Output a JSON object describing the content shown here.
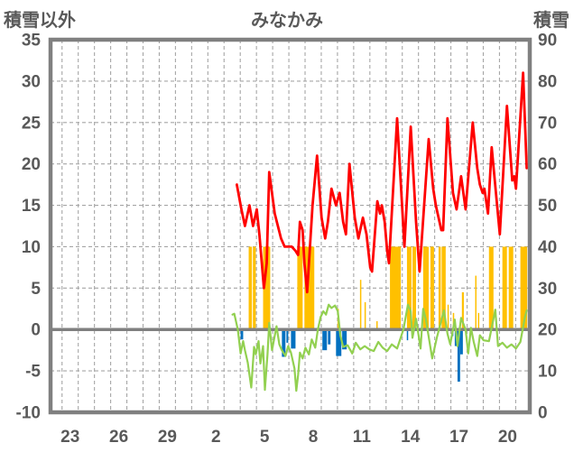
{
  "chart_data": {
    "type": "line+bar",
    "title": "みなかみ",
    "left_axis": {
      "label": "積雪以外",
      "min": -10,
      "max": 35,
      "ticks": [
        "35",
        "30",
        "25",
        "20",
        "15",
        "10",
        "5",
        "0",
        "-5",
        "-10"
      ],
      "tick_values": [
        35,
        30,
        25,
        20,
        15,
        10,
        5,
        0,
        -5,
        -10
      ],
      "grid_values": [
        30,
        25,
        20,
        15,
        10,
        5,
        -5
      ]
    },
    "right_axis": {
      "label": "積雪",
      "min": 0,
      "max": 90,
      "ticks": [
        "90",
        "80",
        "70",
        "60",
        "50",
        "40",
        "30",
        "20",
        "10",
        "0"
      ],
      "tick_values": [
        90,
        80,
        70,
        60,
        50,
        40,
        30,
        20,
        10,
        0
      ]
    },
    "x_axis": {
      "t_min": -1.21,
      "t_max": 28.37,
      "gridline_start": -0.5,
      "gridline_step": 1,
      "gridline_end": 27.5,
      "ticks": [
        {
          "t": 0,
          "label": "23"
        },
        {
          "t": 3,
          "label": "26"
        },
        {
          "t": 6,
          "label": "29"
        },
        {
          "t": 9,
          "label": "2"
        },
        {
          "t": 12,
          "label": "5"
        },
        {
          "t": 15,
          "label": "8"
        },
        {
          "t": 18,
          "label": "11"
        },
        {
          "t": 21,
          "label": "14"
        },
        {
          "t": 24,
          "label": "17"
        },
        {
          "t": 27,
          "label": "20"
        }
      ]
    },
    "colors": {
      "red_line": "#FF0000",
      "green_line": "#92D050",
      "orange_bars": "#FFC000",
      "blue_bars": "#0070C0",
      "frame": "#808080",
      "gridline": "#A6A6A6",
      "zero_line": "#808080",
      "text": "#595959"
    },
    "series": [
      {
        "name": "snow-depth-line",
        "type": "line",
        "axis": "right",
        "color": "#FF0000",
        "points": [
          [
            10.29,
            55
          ],
          [
            10.57,
            49
          ],
          [
            10.79,
            45
          ],
          [
            11.07,
            50
          ],
          [
            11.29,
            45
          ],
          [
            11.52,
            49
          ],
          [
            11.68,
            43
          ],
          [
            11.96,
            30
          ],
          [
            12.13,
            36
          ],
          [
            12.29,
            58
          ],
          [
            12.63,
            48
          ],
          [
            13.02,
            42
          ],
          [
            13.24,
            40
          ],
          [
            13.46,
            40
          ],
          [
            13.68,
            40
          ],
          [
            13.91,
            39
          ],
          [
            14.07,
            38
          ],
          [
            14.18,
            46
          ],
          [
            14.35,
            44
          ],
          [
            14.46,
            36
          ],
          [
            14.63,
            29
          ],
          [
            14.96,
            50
          ],
          [
            15.24,
            62
          ],
          [
            15.52,
            47
          ],
          [
            15.74,
            42
          ],
          [
            15.91,
            46
          ],
          [
            16.13,
            54
          ],
          [
            16.41,
            50
          ],
          [
            16.63,
            53
          ],
          [
            16.85,
            46
          ],
          [
            17.02,
            43
          ],
          [
            17.24,
            60
          ],
          [
            17.57,
            47
          ],
          [
            17.79,
            42
          ],
          [
            18.07,
            47
          ],
          [
            18.29,
            43
          ],
          [
            18.52,
            35
          ],
          [
            18.63,
            34
          ],
          [
            18.96,
            51
          ],
          [
            19.13,
            48
          ],
          [
            19.24,
            50
          ],
          [
            19.41,
            46
          ],
          [
            19.57,
            39
          ],
          [
            19.68,
            36
          ],
          [
            20.18,
            71
          ],
          [
            20.63,
            40
          ],
          [
            21.02,
            69
          ],
          [
            21.35,
            46
          ],
          [
            21.57,
            34
          ],
          [
            22.13,
            66
          ],
          [
            22.41,
            54
          ],
          [
            22.57,
            50
          ],
          [
            22.91,
            44
          ],
          [
            23.02,
            44
          ],
          [
            23.29,
            71
          ],
          [
            23.63,
            53
          ],
          [
            23.85,
            49
          ],
          [
            24.13,
            57
          ],
          [
            24.41,
            49
          ],
          [
            24.85,
            70
          ],
          [
            25.13,
            59
          ],
          [
            25.29,
            55
          ],
          [
            25.46,
            53
          ],
          [
            25.57,
            54
          ],
          [
            25.79,
            48
          ],
          [
            26.02,
            64
          ],
          [
            26.52,
            43
          ],
          [
            26.96,
            74
          ],
          [
            27.29,
            56
          ],
          [
            27.41,
            57
          ],
          [
            27.52,
            54
          ],
          [
            27.96,
            82
          ],
          [
            28.18,
            59
          ]
        ]
      },
      {
        "name": "temperature-line",
        "type": "line",
        "axis": "left",
        "color": "#92D050",
        "points": [
          [
            10.02,
            1.8
          ],
          [
            10.13,
            1.9
          ],
          [
            10.35,
            0
          ],
          [
            10.52,
            -2.9
          ],
          [
            10.68,
            -1.4
          ],
          [
            10.79,
            -2.5
          ],
          [
            10.96,
            -4
          ],
          [
            11.18,
            -7
          ],
          [
            11.35,
            -2.1
          ],
          [
            11.46,
            -3
          ],
          [
            11.63,
            -1.4
          ],
          [
            11.74,
            -4.1
          ],
          [
            11.91,
            -2
          ],
          [
            12.02,
            -7.3
          ],
          [
            12.18,
            -3
          ],
          [
            12.29,
            0.8
          ],
          [
            12.46,
            -2.5
          ],
          [
            12.74,
            0.4
          ],
          [
            12.91,
            -1.8
          ],
          [
            13.07,
            -2.5
          ],
          [
            13.29,
            -3.2
          ],
          [
            13.46,
            -2
          ],
          [
            13.63,
            -2.8
          ],
          [
            13.85,
            -4.7
          ],
          [
            13.96,
            -7.4
          ],
          [
            14.07,
            -5.5
          ],
          [
            14.18,
            -2.8
          ],
          [
            14.35,
            -3.5
          ],
          [
            14.52,
            -2.2
          ],
          [
            14.74,
            -3
          ],
          [
            14.91,
            -1.2
          ],
          [
            15.13,
            -2.2
          ],
          [
            15.29,
            0
          ],
          [
            15.46,
            1.5
          ],
          [
            15.63,
            2.2
          ],
          [
            15.79,
            1.8
          ],
          [
            15.96,
            3
          ],
          [
            16.13,
            2.6
          ],
          [
            16.35,
            2.9
          ],
          [
            16.52,
            2.2
          ],
          [
            16.68,
            -0.7
          ],
          [
            16.85,
            -2.1
          ],
          [
            17.13,
            -1.9
          ],
          [
            17.41,
            -2.9
          ],
          [
            17.63,
            -1.6
          ],
          [
            17.91,
            -2.4
          ],
          [
            18.18,
            -2
          ],
          [
            18.46,
            -2.4
          ],
          [
            18.74,
            -2.6
          ],
          [
            19.02,
            -1.5
          ],
          [
            19.29,
            -2.2
          ],
          [
            19.57,
            -2.6
          ],
          [
            19.85,
            -1.8
          ],
          [
            20.18,
            -2.3
          ],
          [
            20.57,
            0
          ],
          [
            20.85,
            3
          ],
          [
            21.02,
            2.2
          ],
          [
            21.13,
            -1
          ],
          [
            21.35,
            1.3
          ],
          [
            21.63,
            -2.3
          ],
          [
            21.79,
            2.5
          ],
          [
            21.96,
            1.2
          ],
          [
            22.35,
            -3.5
          ],
          [
            22.63,
            -1
          ],
          [
            23.07,
            2.3
          ],
          [
            23.29,
            -0.5
          ],
          [
            23.46,
            -1.8
          ],
          [
            23.74,
            1.2
          ],
          [
            23.91,
            -2
          ],
          [
            24.13,
            1.4
          ],
          [
            24.41,
            0
          ],
          [
            24.57,
            -2.9
          ],
          [
            24.74,
            0.2
          ],
          [
            24.91,
            -1.5
          ],
          [
            25.13,
            -3.2
          ],
          [
            25.29,
            -0.7
          ],
          [
            25.52,
            -1.3
          ],
          [
            25.85,
            -1.4
          ],
          [
            26.24,
            2.4
          ],
          [
            26.41,
            -2
          ],
          [
            26.68,
            -1.6
          ],
          [
            26.96,
            -2.2
          ],
          [
            27.24,
            -1.8
          ],
          [
            27.52,
            -2.3
          ],
          [
            27.79,
            -1.5
          ],
          [
            28.07,
            1.5
          ],
          [
            28.18,
            2.3
          ]
        ]
      },
      {
        "name": "snowfall-bars",
        "type": "bar",
        "axis": "left",
        "color": "#FFC000",
        "bars": [
          [
            11.02,
            11.22,
            10
          ],
          [
            11.28,
            11.46,
            10
          ],
          [
            11.91,
            12.35,
            10
          ],
          [
            14.02,
            14.35,
            10
          ],
          [
            14.46,
            15.07,
            10
          ],
          [
            16.5,
            16.56,
            2.5
          ],
          [
            17.89,
            17.97,
            6
          ],
          [
            18.17,
            18.25,
            3.3
          ],
          [
            18.9,
            18.96,
            1
          ],
          [
            19.74,
            20.41,
            10
          ],
          [
            20.79,
            21.07,
            10
          ],
          [
            21.13,
            21.35,
            10
          ],
          [
            21.79,
            22.13,
            10
          ],
          [
            22.24,
            22.46,
            10
          ],
          [
            22.74,
            22.88,
            10
          ],
          [
            22.93,
            23.18,
            10
          ],
          [
            23.29,
            23.35,
            3
          ],
          [
            23.62,
            23.68,
            2
          ],
          [
            24.18,
            24.3,
            4.5
          ],
          [
            25.0,
            25.08,
            6.5
          ],
          [
            25.17,
            25.23,
            2
          ],
          [
            25.85,
            26.13,
            10
          ],
          [
            26.68,
            26.96,
            10
          ],
          [
            27.07,
            27.35,
            10
          ],
          [
            27.79,
            28.21,
            10
          ]
        ]
      },
      {
        "name": "precipitation-bars",
        "type": "bar",
        "axis": "left",
        "color": "#0070C0",
        "bars": [
          [
            10.52,
            10.68,
            -1.2
          ],
          [
            13.07,
            13.29,
            -3.3
          ],
          [
            13.35,
            13.46,
            -1.6
          ],
          [
            13.63,
            13.91,
            -2.3
          ],
          [
            15.57,
            15.85,
            -2.5
          ],
          [
            15.91,
            16.07,
            -1.8
          ],
          [
            16.41,
            16.74,
            -3.2
          ],
          [
            16.79,
            17.07,
            -2.4
          ],
          [
            20.78,
            20.84,
            -1.3
          ],
          [
            23.57,
            23.63,
            -0.8
          ],
          [
            23.74,
            23.91,
            -2.0
          ],
          [
            23.91,
            24.07,
            -6.3
          ],
          [
            24.07,
            24.24,
            -3.0
          ]
        ]
      }
    ]
  }
}
